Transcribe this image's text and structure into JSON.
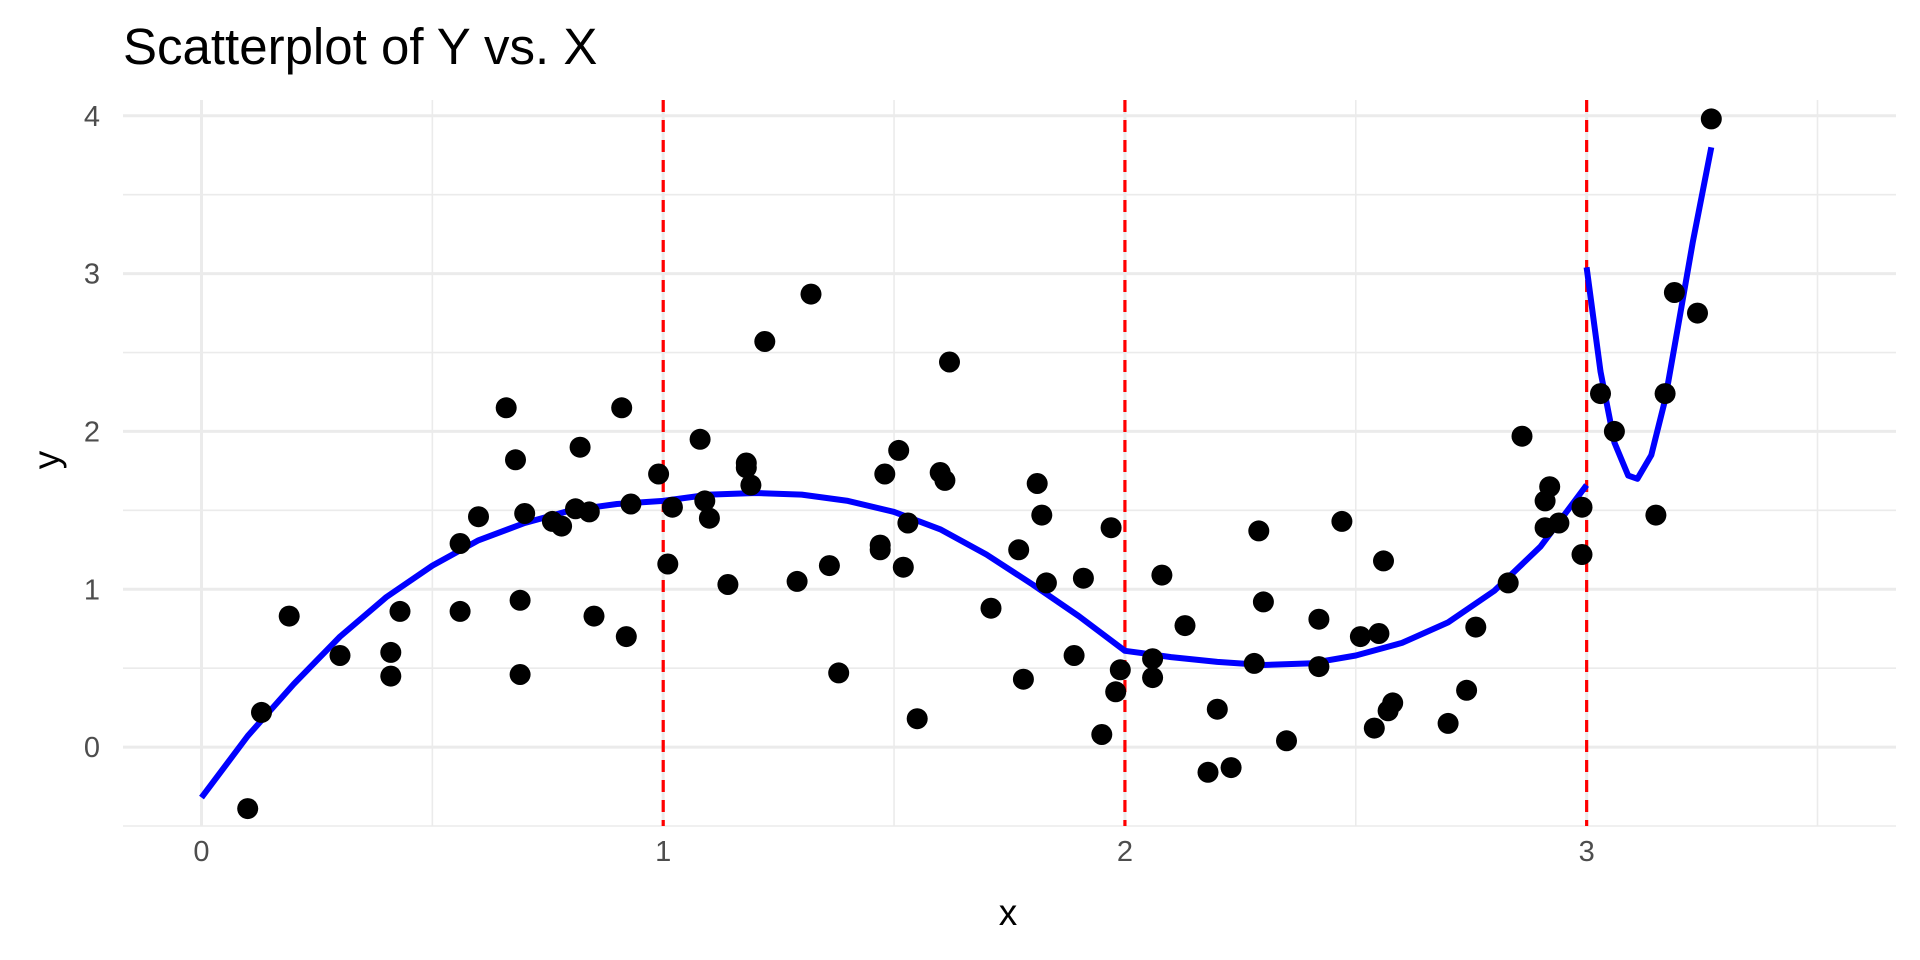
{
  "chart_data": {
    "type": "scatter",
    "title": "Scatterplot of Y vs. X",
    "xlabel": "x",
    "ylabel": "y",
    "xlim": [
      -0.17,
      3.67
    ],
    "ylim": [
      -0.5,
      4.1
    ],
    "x_ticks": [
      0,
      1,
      2,
      3
    ],
    "y_ticks": [
      0,
      1,
      2,
      3,
      4
    ],
    "grid": true,
    "legend": "none",
    "colors": {
      "points": "#000000",
      "fit_line": "#0000ff",
      "knots": "#ff0000",
      "grid": "#ebebeb",
      "tick_text": "#4d4d4d"
    },
    "vertical_lines": {
      "x": [
        1,
        2,
        3
      ],
      "style": "dashed",
      "color": "#ff0000"
    },
    "points": [
      {
        "x": 0.1,
        "y": -0.39
      },
      {
        "x": 0.13,
        "y": 0.22
      },
      {
        "x": 0.19,
        "y": 0.83
      },
      {
        "x": 0.3,
        "y": 0.58
      },
      {
        "x": 0.41,
        "y": 0.45
      },
      {
        "x": 0.41,
        "y": 0.6
      },
      {
        "x": 0.43,
        "y": 0.86
      },
      {
        "x": 0.56,
        "y": 0.86
      },
      {
        "x": 0.56,
        "y": 1.29
      },
      {
        "x": 0.6,
        "y": 1.46
      },
      {
        "x": 0.66,
        "y": 2.15
      },
      {
        "x": 0.68,
        "y": 1.82
      },
      {
        "x": 0.69,
        "y": 0.93
      },
      {
        "x": 0.69,
        "y": 0.46
      },
      {
        "x": 0.7,
        "y": 1.48
      },
      {
        "x": 0.76,
        "y": 1.43
      },
      {
        "x": 0.78,
        "y": 1.4
      },
      {
        "x": 0.81,
        "y": 1.51
      },
      {
        "x": 0.82,
        "y": 1.9
      },
      {
        "x": 0.84,
        "y": 1.49
      },
      {
        "x": 0.85,
        "y": 0.83
      },
      {
        "x": 0.91,
        "y": 2.15
      },
      {
        "x": 0.92,
        "y": 0.7
      },
      {
        "x": 0.93,
        "y": 1.54
      },
      {
        "x": 0.99,
        "y": 1.73
      },
      {
        "x": 1.01,
        "y": 1.16
      },
      {
        "x": 1.02,
        "y": 1.52
      },
      {
        "x": 1.08,
        "y": 1.95
      },
      {
        "x": 1.09,
        "y": 1.56
      },
      {
        "x": 1.1,
        "y": 1.45
      },
      {
        "x": 1.14,
        "y": 1.03
      },
      {
        "x": 1.18,
        "y": 1.8
      },
      {
        "x": 1.18,
        "y": 1.77
      },
      {
        "x": 1.19,
        "y": 1.66
      },
      {
        "x": 1.22,
        "y": 2.57
      },
      {
        "x": 1.29,
        "y": 1.05
      },
      {
        "x": 1.32,
        "y": 2.87
      },
      {
        "x": 1.36,
        "y": 1.15
      },
      {
        "x": 1.38,
        "y": 0.47
      },
      {
        "x": 1.47,
        "y": 1.28
      },
      {
        "x": 1.47,
        "y": 1.25
      },
      {
        "x": 1.48,
        "y": 1.73
      },
      {
        "x": 1.51,
        "y": 1.88
      },
      {
        "x": 1.52,
        "y": 1.14
      },
      {
        "x": 1.53,
        "y": 1.42
      },
      {
        "x": 1.55,
        "y": 0.18
      },
      {
        "x": 1.6,
        "y": 1.74
      },
      {
        "x": 1.61,
        "y": 1.69
      },
      {
        "x": 1.62,
        "y": 2.44
      },
      {
        "x": 1.71,
        "y": 0.88
      },
      {
        "x": 1.77,
        "y": 1.25
      },
      {
        "x": 1.78,
        "y": 0.43
      },
      {
        "x": 1.81,
        "y": 1.67
      },
      {
        "x": 1.82,
        "y": 1.47
      },
      {
        "x": 1.83,
        "y": 1.04
      },
      {
        "x": 1.89,
        "y": 0.58
      },
      {
        "x": 1.91,
        "y": 1.07
      },
      {
        "x": 1.95,
        "y": 0.08
      },
      {
        "x": 1.97,
        "y": 1.39
      },
      {
        "x": 1.98,
        "y": 0.35
      },
      {
        "x": 1.99,
        "y": 0.49
      },
      {
        "x": 2.06,
        "y": 0.56
      },
      {
        "x": 2.06,
        "y": 0.44
      },
      {
        "x": 2.08,
        "y": 1.09
      },
      {
        "x": 2.13,
        "y": 0.77
      },
      {
        "x": 2.18,
        "y": -0.16
      },
      {
        "x": 2.2,
        "y": 0.24
      },
      {
        "x": 2.23,
        "y": -0.13
      },
      {
        "x": 2.28,
        "y": 0.53
      },
      {
        "x": 2.29,
        "y": 1.37
      },
      {
        "x": 2.3,
        "y": 0.92
      },
      {
        "x": 2.35,
        "y": 0.04
      },
      {
        "x": 2.42,
        "y": 0.81
      },
      {
        "x": 2.42,
        "y": 0.51
      },
      {
        "x": 2.47,
        "y": 1.43
      },
      {
        "x": 2.51,
        "y": 0.7
      },
      {
        "x": 2.54,
        "y": 0.12
      },
      {
        "x": 2.55,
        "y": 0.72
      },
      {
        "x": 2.56,
        "y": 1.18
      },
      {
        "x": 2.57,
        "y": 0.23
      },
      {
        "x": 2.58,
        "y": 0.28
      },
      {
        "x": 2.7,
        "y": 0.15
      },
      {
        "x": 2.74,
        "y": 0.36
      },
      {
        "x": 2.76,
        "y": 0.76
      },
      {
        "x": 2.83,
        "y": 1.04
      },
      {
        "x": 2.86,
        "y": 1.97
      },
      {
        "x": 2.91,
        "y": 1.39
      },
      {
        "x": 2.91,
        "y": 1.56
      },
      {
        "x": 2.92,
        "y": 1.65
      },
      {
        "x": 2.94,
        "y": 1.42
      },
      {
        "x": 2.99,
        "y": 1.52
      },
      {
        "x": 2.99,
        "y": 1.22
      },
      {
        "x": 3.03,
        "y": 2.24
      },
      {
        "x": 3.06,
        "y": 2.0
      },
      {
        "x": 3.15,
        "y": 1.47
      },
      {
        "x": 3.17,
        "y": 2.24
      },
      {
        "x": 3.19,
        "y": 2.88
      },
      {
        "x": 3.24,
        "y": 2.75
      },
      {
        "x": 3.27,
        "y": 3.98
      }
    ],
    "fit_segments": [
      {
        "x": [
          0.0,
          0.1,
          0.2,
          0.3,
          0.4,
          0.5,
          0.6,
          0.7,
          0.8,
          0.9,
          1.0,
          1.1,
          1.2,
          1.3,
          1.4,
          1.5,
          1.6,
          1.7,
          1.8,
          1.9,
          2.0,
          2.1,
          2.2,
          2.3,
          2.4,
          2.5,
          2.6,
          2.7,
          2.8,
          2.9,
          3.0
        ],
        "y": [
          -0.32,
          0.07,
          0.4,
          0.7,
          0.95,
          1.15,
          1.31,
          1.42,
          1.5,
          1.54,
          1.56,
          1.6,
          1.61,
          1.6,
          1.56,
          1.49,
          1.38,
          1.22,
          1.03,
          0.83,
          0.61,
          0.57,
          0.54,
          0.52,
          0.53,
          0.58,
          0.66,
          0.79,
          0.99,
          1.27,
          1.66
        ]
      },
      {
        "x": [
          3.0,
          3.03,
          3.06,
          3.09,
          3.11,
          3.14,
          3.17,
          3.2,
          3.23,
          3.27
        ],
        "y": [
          3.04,
          2.38,
          1.93,
          1.72,
          1.7,
          1.85,
          2.2,
          2.7,
          3.2,
          3.8
        ]
      }
    ]
  }
}
